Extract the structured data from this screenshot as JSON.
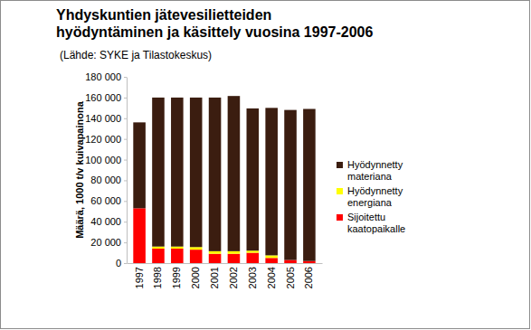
{
  "chart_data": {
    "type": "bar",
    "stacked": true,
    "title": "Yhdyskuntien jätevesilietteiden\nhyödyntäminen ja käsittely vuosina 1997-2006",
    "subtitle": "(Lähde: SYKE ja Tilastokeskus)",
    "y_label": "Määrä, 1000 t/v kuivapainona",
    "categories": [
      "1997",
      "1998",
      "1999",
      "2000",
      "2001",
      "2002",
      "2003",
      "2004",
      "2005",
      "2006"
    ],
    "series": [
      {
        "name": "Sijoitettu kaatopaikalle",
        "color": "#ff0000",
        "values": [
          53000,
          14000,
          14000,
          13000,
          9000,
          9000,
          10000,
          5000,
          3000,
          2000
        ]
      },
      {
        "name": "Hyödynnetty energiana",
        "color": "#ffff00",
        "values": [
          0,
          2000,
          2000,
          2500,
          2500,
          2500,
          2000,
          2500,
          0,
          0
        ]
      },
      {
        "name": "Hyödynnetty materiana",
        "color": "#3b1d10",
        "values": [
          83000,
          144000,
          144000,
          144500,
          148500,
          150000,
          137500,
          142500,
          145000,
          147000
        ]
      }
    ],
    "ylim": [
      0,
      180000
    ],
    "yticks": [
      0,
      {
        "value": 20000,
        "label": "20 000"
      },
      {
        "value": 40000,
        "label": "40 000"
      },
      {
        "value": 60000,
        "label": "60 000"
      },
      {
        "value": 80000,
        "label": "80 000"
      },
      {
        "value": 100000,
        "label": "100 000"
      },
      {
        "value": 120000,
        "label": "120 000"
      },
      {
        "value": 140000,
        "label": "140 000"
      },
      {
        "value": 160000,
        "label": "160 000"
      },
      {
        "value": 180000,
        "label": "180 000"
      }
    ],
    "grid": false,
    "legend": "right"
  }
}
